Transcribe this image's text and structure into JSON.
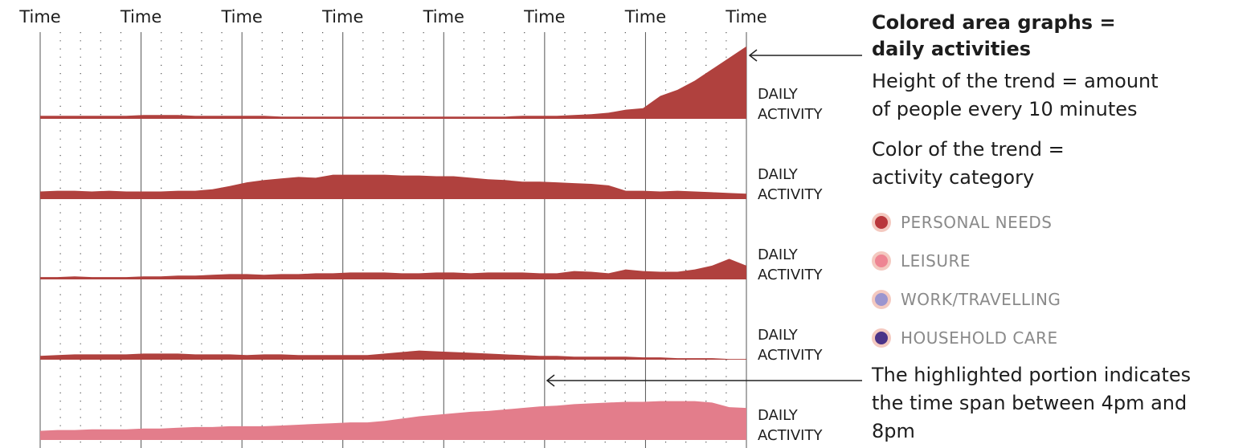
{
  "chart_data": {
    "type": "area",
    "x_tick_labels": [
      "Time",
      "Time",
      "Time",
      "Time",
      "Time",
      "Time",
      "Time",
      "Time"
    ],
    "row_label": [
      "DAILY",
      "ACTIVITY"
    ],
    "series": [
      {
        "category": "PERSONAL NEEDS",
        "color": "#b0413e",
        "values": [
          4,
          4,
          4,
          4,
          4,
          4,
          5,
          5,
          5,
          4,
          4,
          4,
          4,
          4,
          3,
          3,
          3,
          3,
          3,
          3,
          3,
          3,
          3,
          3,
          3,
          3,
          3,
          3,
          4,
          4,
          4,
          5,
          6,
          8,
          12,
          14,
          30,
          38,
          50,
          65,
          80,
          95
        ]
      },
      {
        "category": "PERSONAL NEEDS",
        "color": "#b0413e",
        "values": [
          10,
          11,
          11,
          10,
          11,
          10,
          10,
          10,
          11,
          11,
          13,
          17,
          22,
          25,
          27,
          29,
          28,
          32,
          32,
          32,
          32,
          31,
          31,
          30,
          30,
          28,
          26,
          25,
          23,
          23,
          22,
          21,
          20,
          18,
          11,
          11,
          10,
          11,
          10,
          9,
          8,
          7
        ]
      },
      {
        "category": "PERSONAL NEEDS",
        "color": "#b0413e",
        "values": [
          3,
          3,
          4,
          3,
          3,
          3,
          4,
          4,
          5,
          5,
          6,
          7,
          7,
          6,
          7,
          7,
          8,
          8,
          9,
          9,
          9,
          8,
          8,
          9,
          9,
          8,
          9,
          9,
          9,
          8,
          8,
          11,
          10,
          8,
          13,
          11,
          10,
          10,
          13,
          18,
          27,
          18
        ]
      },
      {
        "category": "PERSONAL NEEDS",
        "color": "#b0413e",
        "values": [
          5,
          6,
          7,
          7,
          7,
          7,
          8,
          8,
          8,
          7,
          7,
          7,
          6,
          7,
          7,
          6,
          6,
          6,
          6,
          6,
          8,
          10,
          12,
          11,
          10,
          9,
          8,
          7,
          6,
          5,
          5,
          4,
          4,
          4,
          4,
          3,
          3,
          2,
          2,
          2,
          1,
          1
        ]
      },
      {
        "category": "LEISURE",
        "color": "#e37d8b",
        "values": [
          12,
          13,
          13,
          14,
          14,
          14,
          15,
          15,
          16,
          17,
          17,
          18,
          18,
          18,
          19,
          20,
          21,
          22,
          23,
          23,
          25,
          28,
          31,
          33,
          35,
          37,
          38,
          40,
          42,
          44,
          45,
          47,
          48,
          49,
          50,
          50,
          51,
          51,
          51,
          49,
          43,
          42
        ]
      }
    ],
    "highlight": {
      "start_label": "4pm",
      "end_label": "8pm"
    }
  },
  "legend": {
    "title_line1": "Colored area graphs =",
    "title_line2": "daily activities",
    "height_note_line1": "Height of the trend = amount",
    "height_note_line2": "of people every 10 minutes",
    "color_note_line1": "Color of the trend =",
    "color_note_line2": "activity category",
    "categories": [
      {
        "label": "PERSONAL NEEDS",
        "color": "#b9373c"
      },
      {
        "label": "LEISURE",
        "color": "#ee8593"
      },
      {
        "label": "WORK/TRAVELLING",
        "color": "#9b95cf"
      },
      {
        "label": "HOUSEHOLD CARE",
        "color": "#4b3388"
      }
    ]
  },
  "highlight_note": {
    "line1": "The highlighted portion indicates",
    "line2": "the time span between 4pm and",
    "line3": "8pm"
  }
}
